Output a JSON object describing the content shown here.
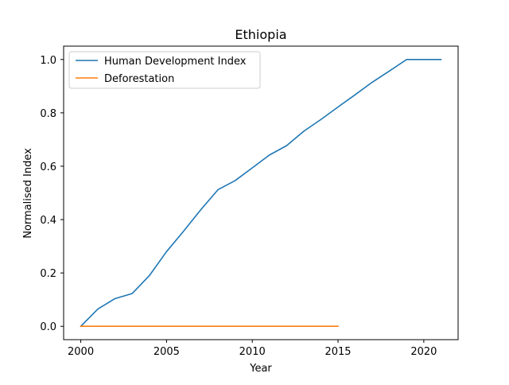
{
  "chart_data": {
    "type": "line",
    "title": "Ethiopia",
    "xlabel": "Year",
    "ylabel": "Normalised Index",
    "xlim": [
      1999,
      2022
    ],
    "ylim": [
      -0.05,
      1.05
    ],
    "xticks": [
      2000,
      2005,
      2010,
      2015,
      2020
    ],
    "yticks": [
      0.0,
      0.2,
      0.4,
      0.6,
      0.8,
      1.0
    ],
    "ytick_labels": [
      "0.0",
      "0.2",
      "0.4",
      "0.6",
      "0.8",
      "1.0"
    ],
    "grid": false,
    "legend_position": "top-left",
    "series": [
      {
        "name": "Human Development Index",
        "color": "#1f77b4",
        "x": [
          2000,
          2001,
          2002,
          2003,
          2004,
          2005,
          2006,
          2007,
          2008,
          2009,
          2010,
          2011,
          2012,
          2013,
          2014,
          2015,
          2016,
          2017,
          2018,
          2019,
          2020,
          2021
        ],
        "y": [
          0.0,
          0.065,
          0.104,
          0.123,
          0.19,
          0.28,
          0.357,
          0.437,
          0.512,
          0.546,
          0.594,
          0.642,
          0.677,
          0.731,
          0.775,
          0.822,
          0.868,
          0.915,
          0.957,
          1.0,
          1.0,
          1.0
        ]
      },
      {
        "name": "Deforestation",
        "color": "#ff7f0e",
        "x": [
          2000,
          2001,
          2002,
          2003,
          2004,
          2005,
          2006,
          2007,
          2008,
          2009,
          2010,
          2011,
          2012,
          2013,
          2014,
          2015
        ],
        "y": [
          0,
          0,
          0,
          0,
          0,
          0,
          0,
          0,
          0,
          0,
          0,
          0,
          0,
          0,
          0,
          0
        ]
      }
    ]
  }
}
